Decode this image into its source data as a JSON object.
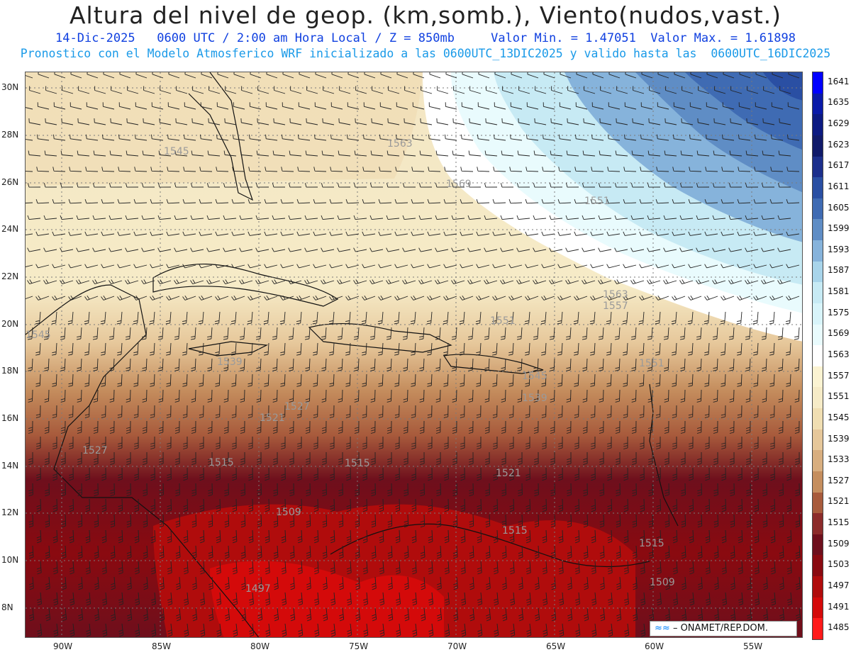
{
  "header": {
    "title": "Altura del nivel de geop. (km,somb.), Viento(nudos,vast.)",
    "subtitle_line1": "14-Dic-2025   0600 UTC / 2:00 am Hora Local / Z = 850mb     Valor Min. = 1.47051  Valor Max. = 1.61898",
    "subtitle_line2": "Pronostico con el Modelo Atmosferico WRF inicializado a las 0600UTC_13DIC2025 y valido hasta las  0600UTC_16DIC2025"
  },
  "axes": {
    "lat_labels": [
      "30N",
      "28N",
      "26N",
      "24N",
      "22N",
      "20N",
      "18N",
      "16N",
      "14N",
      "12N",
      "10N",
      "8N"
    ],
    "lon_labels": [
      "90W",
      "85W",
      "80W",
      "75W",
      "70W",
      "65W",
      "60W",
      "55W"
    ]
  },
  "colorbar": {
    "levels": [
      "1641",
      "1635",
      "1629",
      "1623",
      "1617",
      "1611",
      "1605",
      "1599",
      "1593",
      "1587",
      "1581",
      "1575",
      "1569",
      "1563",
      "1557",
      "1551",
      "1545",
      "1539",
      "1533",
      "1527",
      "1521",
      "1515",
      "1509",
      "1503",
      "1497",
      "1491",
      "1485"
    ],
    "colors": [
      "#0000ff",
      "#0a1aa8",
      "#0c1a82",
      "#101a6a",
      "#1c2f8c",
      "#2a4fa3",
      "#3f6bb3",
      "#5f8dc5",
      "#86b3db",
      "#a8d4ea",
      "#c7eaf4",
      "#d8f4fa",
      "#e9fbfd",
      "#ffffff",
      "#fbf3d2",
      "#f6ebc7",
      "#f0deb2",
      "#e6c79a",
      "#d8ae7f",
      "#c58e5e",
      "#a85b3c",
      "#8c2b2a",
      "#6e0f1c",
      "#8a0a10",
      "#b00c0c",
      "#d40a0a",
      "#ff1a1a"
    ]
  },
  "contour_labels": [
    "1545",
    "1563",
    "1569",
    "1551",
    "1563",
    "1557",
    "1551",
    "1545",
    "1539",
    "1551",
    "1545",
    "1539",
    "1527",
    "1521",
    "1527",
    "1515",
    "1515",
    "1509",
    "1521",
    "1515",
    "1497",
    "1509",
    "1515"
  ],
  "credit": {
    "text": "– ONAMET/REP.DOM."
  }
}
